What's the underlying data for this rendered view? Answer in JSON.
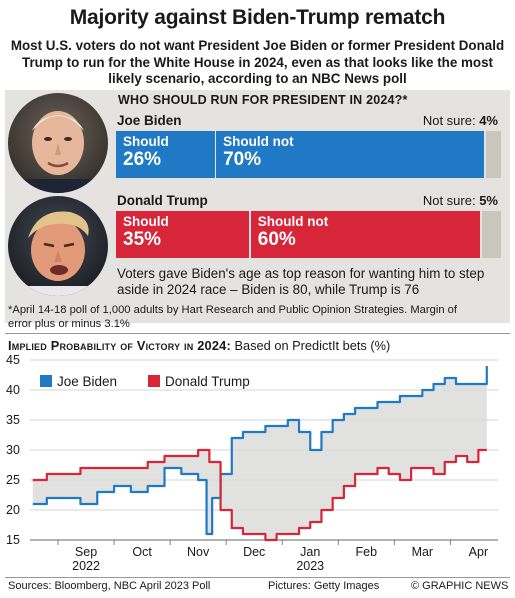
{
  "header": {
    "title": "Majority against Biden-Trump rematch",
    "subtitle": "Most U.S. voters do not want President Joe Biden or former President Donald Trump to run for the White House in 2024, even as that looks like the most likely scenario, according to an NBC News poll"
  },
  "poll": {
    "heading": "Who Should Run for President in 2024?*",
    "candidates": [
      {
        "name": "Joe Biden",
        "should_label": "Should",
        "should": 26,
        "should_text": "26%",
        "should_not_label": "Should not",
        "should_not": 70,
        "should_not_text": "70%",
        "not_sure_label": "Not sure:",
        "not_sure": 4,
        "not_sure_text": "4%",
        "color": "#1f79c4"
      },
      {
        "name": "Donald Trump",
        "should_label": "Should",
        "should": 35,
        "should_text": "35%",
        "should_not_label": "Should not",
        "should_not": 60,
        "should_not_text": "60%",
        "not_sure_label": "Not sure:",
        "not_sure": 5,
        "not_sure_text": "5%",
        "color": "#d7253a"
      }
    ],
    "note": "Voters gave Biden's age as top reason for wanting him to step aside in 2024 race – Biden is 80, while Trump is 76",
    "footnote": "*April 14-18 poll of 1,000 adults by Hart Research and Public Opinion Strategies. Margin of error plus or minus 3.1%"
  },
  "chart_data": {
    "type": "line",
    "title": "Implied Probability of Victory in 2024:",
    "subtitle": "Based on PredictIt bets (%)",
    "ylim": [
      15,
      45
    ],
    "yticks": [
      15,
      20,
      25,
      30,
      35,
      40,
      45
    ],
    "xlim": [
      0,
      8
    ],
    "x_month_labels": [
      {
        "label": "Sep",
        "x": 1.0
      },
      {
        "label": "Oct",
        "x": 2.0
      },
      {
        "label": "Nov",
        "x": 3.0
      },
      {
        "label": "Dec",
        "x": 4.0
      },
      {
        "label": "Jan",
        "x": 5.0
      },
      {
        "label": "Feb",
        "x": 6.0
      },
      {
        "label": "Mar",
        "x": 7.0
      },
      {
        "label": "Apr",
        "x": 8.0
      }
    ],
    "x_year_labels": [
      {
        "label": "2022",
        "x": 1.0
      },
      {
        "label": "2023",
        "x": 5.0
      }
    ],
    "legend_position": "top-left",
    "series": [
      {
        "name": "Joe Biden",
        "color": "#1f79c4",
        "x": [
          0.05,
          0.3,
          0.6,
          0.9,
          1.2,
          1.5,
          1.8,
          2.1,
          2.4,
          2.7,
          3.0,
          3.15,
          3.25,
          3.4,
          3.6,
          3.8,
          4.0,
          4.2,
          4.4,
          4.6,
          4.8,
          5.0,
          5.2,
          5.4,
          5.6,
          5.8,
          6.0,
          6.2,
          6.4,
          6.6,
          6.8,
          7.0,
          7.2,
          7.4,
          7.6,
          7.8,
          8.0,
          8.15
        ],
        "values": [
          21,
          22,
          22,
          21,
          23,
          24,
          23,
          24,
          27,
          26,
          25,
          16,
          22,
          26,
          32,
          33,
          33,
          34,
          34,
          35,
          33,
          30,
          33,
          35,
          36,
          37,
          37,
          38,
          38,
          39,
          39,
          40,
          41,
          42,
          41,
          41,
          41,
          44
        ]
      },
      {
        "name": "Donald Trump",
        "color": "#d7253a",
        "x": [
          0.05,
          0.3,
          0.6,
          0.9,
          1.2,
          1.5,
          1.8,
          2.1,
          2.4,
          2.7,
          3.0,
          3.2,
          3.4,
          3.6,
          3.8,
          4.0,
          4.2,
          4.4,
          4.6,
          4.8,
          5.0,
          5.2,
          5.4,
          5.6,
          5.8,
          6.0,
          6.2,
          6.4,
          6.6,
          6.8,
          7.0,
          7.2,
          7.4,
          7.6,
          7.8,
          8.0,
          8.15
        ],
        "values": [
          25,
          26,
          26,
          27,
          27,
          27,
          27,
          28,
          29,
          29,
          30,
          28,
          20,
          17,
          16,
          16,
          15,
          16,
          16,
          17,
          18,
          20,
          22,
          24,
          26,
          26,
          27,
          26,
          25,
          27,
          27,
          26,
          28,
          29,
          28,
          30,
          30
        ]
      }
    ]
  },
  "footer": {
    "sources": "Sources: Bloomberg, NBC April 2023 Poll",
    "pictures": "Pictures: Getty Images",
    "credit": "© GRAPHIC NEWS"
  }
}
